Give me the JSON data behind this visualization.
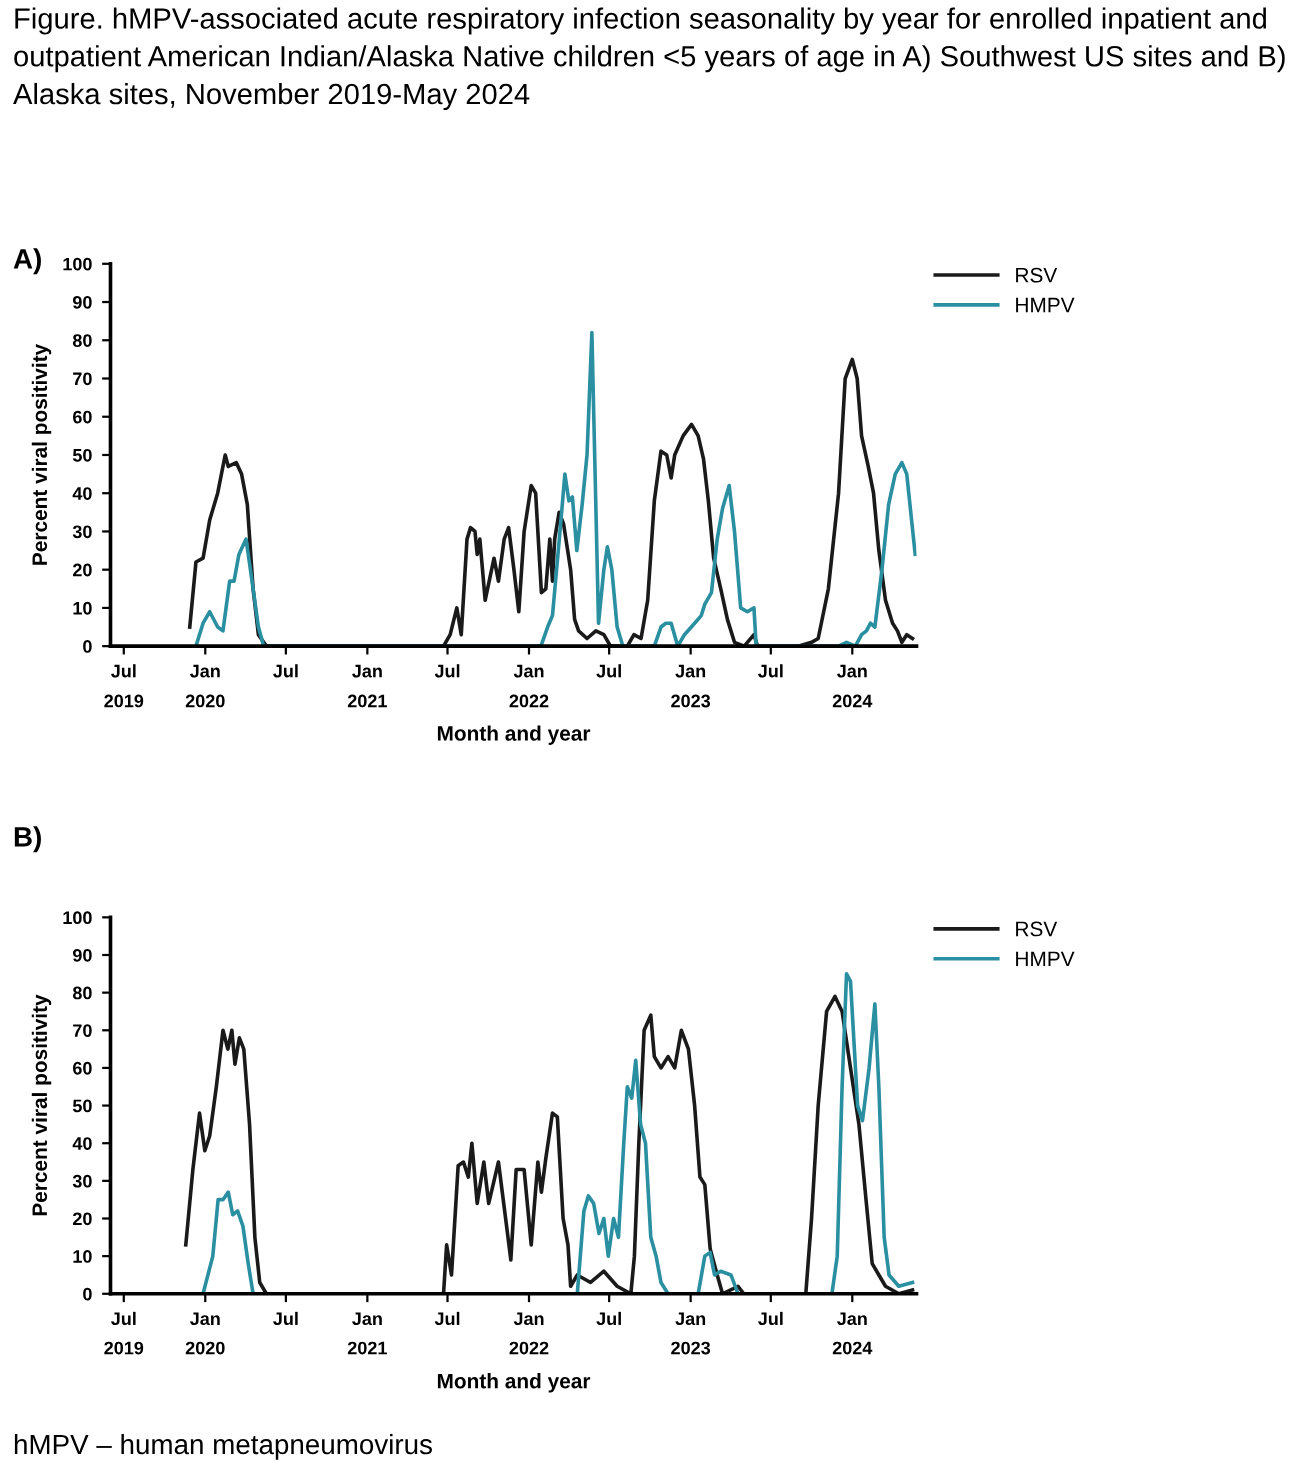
{
  "chart_data": [
    {
      "type": "line",
      "title": "Figure. hMPV-associated acute respiratory infection seasonality by year for enrolled inpatient and outpatient American Indian/Alaska Native children <5 years of age in A) Southwest US sites and B) Alaska sites, November 2019-May 2024",
      "subtitle": "A)",
      "xlabel": "Month and year",
      "ylabel": "Percent viral positivity",
      "xlim": [
        "2019-06-01",
        "2024-05-25"
      ],
      "ylim": [
        0,
        100
      ],
      "yticks": [
        0,
        10,
        20,
        30,
        40,
        50,
        60,
        70,
        80,
        90,
        100
      ],
      "xticks": [
        {
          "value": "2019-07-01",
          "label": "Jul"
        },
        {
          "value": "2020-01-01",
          "label": "Jan"
        },
        {
          "value": "2020-07-01",
          "label": "Jul"
        },
        {
          "value": "2021-01-01",
          "label": "Jan"
        },
        {
          "value": "2021-07-01",
          "label": "Jul"
        },
        {
          "value": "2022-01-01",
          "label": "Jan"
        },
        {
          "value": "2022-07-01",
          "label": "Jul"
        },
        {
          "value": "2023-01-01",
          "label": "Jan"
        },
        {
          "value": "2023-07-01",
          "label": "Jul"
        },
        {
          "value": "2024-01-01",
          "label": "Jan"
        }
      ],
      "x2lim": [
        "2019-06-01",
        "2024-05-25"
      ],
      "x2ticks": [
        {
          "value": "2019-07-01",
          "label": "2019"
        },
        {
          "value": "2020-01-01",
          "label": "2020"
        },
        {
          "value": "2021-01-01",
          "label": "2021"
        },
        {
          "value": "2022-01-01",
          "label": "2022"
        },
        {
          "value": "2023-01-01",
          "label": "2023"
        },
        {
          "value": "2024-01-01",
          "label": "2024"
        }
      ],
      "legend": "top right",
      "grid": false,
      "series": [
        {
          "name": "RSV",
          "color": "#1a1a1a",
          "x": [
            "2019-11-27",
            "2019-12-11",
            "2019-12-27",
            "2020-01-11",
            "2020-01-29",
            "2020-02-15",
            "2020-02-22",
            "2020-03-11",
            "2020-03-23",
            "2020-04-05",
            "2020-04-18",
            "2020-04-30",
            "2020-05-18",
            "2021-06-22",
            "2021-07-07",
            "2021-07-22",
            "2021-08-01",
            "2021-08-14",
            "2021-08-22",
            "2021-09-01",
            "2021-09-06",
            "2021-09-12",
            "2021-09-24",
            "2021-10-14",
            "2021-10-24",
            "2021-11-06",
            "2021-11-16",
            "2021-11-28",
            "2021-12-09",
            "2021-12-21",
            "2022-01-06",
            "2022-01-16",
            "2022-01-29",
            "2022-02-08",
            "2022-02-17",
            "2022-02-23",
            "2022-02-28",
            "2022-03-10",
            "2022-03-20",
            "2022-04-05",
            "2022-04-14",
            "2022-04-23",
            "2022-05-12",
            "2022-06-01",
            "2022-06-19",
            "2022-07-04",
            "2022-08-11",
            "2022-08-26",
            "2022-09-11",
            "2022-09-26",
            "2022-10-11",
            "2022-10-26",
            "2022-11-08",
            "2022-11-18",
            "2022-11-26",
            "2022-12-15",
            "2023-01-03",
            "2023-01-18",
            "2023-01-30",
            "2023-02-10",
            "2023-02-22",
            "2023-03-10",
            "2023-03-25",
            "2023-04-10",
            "2023-05-02",
            "2023-05-24",
            "2023-06-01",
            "2023-07-16",
            "2023-09-01",
            "2023-10-01",
            "2023-10-16",
            "2023-11-08",
            "2023-12-01",
            "2023-12-16",
            "2024-01-01",
            "2024-01-12",
            "2024-01-22",
            "2024-02-06",
            "2024-02-18",
            "2024-03-01",
            "2024-03-16",
            "2024-04-01",
            "2024-04-12",
            "2024-04-22",
            "2024-05-03",
            "2024-05-16"
          ],
          "values": [
            5,
            22,
            23,
            33,
            40,
            50,
            47,
            48,
            45,
            37,
            15,
            3,
            0,
            0,
            3,
            10,
            3,
            28,
            31,
            30,
            24,
            28,
            12,
            23,
            17,
            28,
            31,
            20,
            9,
            30,
            42,
            40,
            14,
            15,
            28,
            17,
            28,
            35,
            32,
            20,
            7,
            4,
            2,
            4,
            3,
            0,
            0,
            3,
            2,
            12,
            38,
            51,
            50,
            44,
            50,
            55,
            58,
            55,
            49,
            38,
            23,
            15,
            7,
            1,
            0,
            3,
            0,
            0,
            0,
            1,
            2,
            15,
            40,
            70,
            75,
            70,
            55,
            47,
            40,
            25,
            12,
            6,
            4,
            1,
            3,
            2
          ]
        },
        {
          "name": "HMPV",
          "color": "#2a8fa0",
          "x": [
            "2019-12-11",
            "2019-12-27",
            "2020-01-11",
            "2020-01-29",
            "2020-02-10",
            "2020-02-25",
            "2020-03-06",
            "2020-03-17",
            "2020-04-02",
            "2020-04-12",
            "2020-04-30",
            "2020-05-12",
            "2022-01-28",
            "2022-02-12",
            "2022-02-23",
            "2022-03-12",
            "2022-03-23",
            "2022-04-01",
            "2022-04-09",
            "2022-04-19",
            "2022-05-01",
            "2022-05-12",
            "2022-05-23",
            "2022-06-07",
            "2022-06-19",
            "2022-06-27",
            "2022-07-07",
            "2022-07-19",
            "2022-08-01",
            "2022-10-11",
            "2022-10-26",
            "2022-11-06",
            "2022-11-18",
            "2022-12-03",
            "2022-12-18",
            "2023-01-10",
            "2023-01-25",
            "2023-02-02",
            "2023-02-17",
            "2023-03-02",
            "2023-03-14",
            "2023-03-29",
            "2023-04-10",
            "2023-04-24",
            "2023-05-09",
            "2023-05-24",
            "2023-05-29",
            "2023-12-01",
            "2023-12-19",
            "2024-01-08",
            "2024-01-22",
            "2024-02-02",
            "2024-02-11",
            "2024-02-21",
            "2024-03-08",
            "2024-03-23",
            "2024-04-07",
            "2024-04-22",
            "2024-05-03",
            "2024-05-22"
          ],
          "values": [
            0,
            6,
            9,
            5,
            4,
            17,
            17,
            24,
            28,
            20,
            5,
            0,
            0,
            5,
            8,
            30,
            45,
            38,
            39,
            25,
            37,
            50,
            82,
            6,
            20,
            26,
            20,
            5,
            0,
            0,
            5,
            6,
            6,
            0,
            3,
            6,
            8,
            11,
            14,
            28,
            36,
            42,
            30,
            10,
            9,
            10,
            0,
            0,
            1,
            0,
            3,
            4,
            6,
            5,
            20,
            37,
            45,
            48,
            45,
            24
          ]
        }
      ]
    },
    {
      "type": "line",
      "subtitle": "B)",
      "xlabel": "Month and year",
      "ylabel": "Percent viral positivity",
      "xlim": [
        "2019-06-01",
        "2024-05-25"
      ],
      "ylim": [
        0,
        100
      ],
      "yticks": [
        0,
        10,
        20,
        30,
        40,
        50,
        60,
        70,
        80,
        90,
        100
      ],
      "xticks": [
        {
          "value": "2019-07-01",
          "label": "Jul"
        },
        {
          "value": "2020-01-01",
          "label": "Jan"
        },
        {
          "value": "2020-07-01",
          "label": "Jul"
        },
        {
          "value": "2021-01-01",
          "label": "Jan"
        },
        {
          "value": "2021-07-01",
          "label": "Jul"
        },
        {
          "value": "2022-01-01",
          "label": "Jan"
        },
        {
          "value": "2022-07-01",
          "label": "Jul"
        },
        {
          "value": "2023-01-01",
          "label": "Jan"
        },
        {
          "value": "2023-07-01",
          "label": "Jul"
        },
        {
          "value": "2024-01-01",
          "label": "Jan"
        }
      ],
      "x2lim": [
        "2019-06-01",
        "2024-05-25"
      ],
      "x2ticks": [
        {
          "value": "2019-07-01",
          "label": "2019"
        },
        {
          "value": "2020-01-01",
          "label": "2020"
        },
        {
          "value": "2021-01-01",
          "label": "2021"
        },
        {
          "value": "2022-01-01",
          "label": "2022"
        },
        {
          "value": "2023-01-01",
          "label": "2023"
        },
        {
          "value": "2024-01-01",
          "label": "2024"
        }
      ],
      "legend": "top right",
      "grid": false,
      "annotations": [
        "hMPV – human metapneumovirus"
      ],
      "series": [
        {
          "name": "RSV",
          "color": "#1a1a1a",
          "x": [
            "2019-11-18",
            "2019-12-04",
            "2019-12-19",
            "2019-12-31",
            "2020-01-11",
            "2020-01-26",
            "2020-02-10",
            "2020-02-21",
            "2020-03-01",
            "2020-03-08",
            "2020-03-18",
            "2020-03-28",
            "2020-04-10",
            "2020-04-22",
            "2020-05-03",
            "2020-05-18",
            "2021-06-22",
            "2021-06-29",
            "2021-07-10",
            "2021-07-25",
            "2021-08-06",
            "2021-08-17",
            "2021-08-25",
            "2021-09-06",
            "2021-09-21",
            "2021-10-02",
            "2021-10-14",
            "2021-10-24",
            "2021-11-06",
            "2021-11-21",
            "2021-12-03",
            "2021-12-21",
            "2022-01-06",
            "2022-01-21",
            "2022-01-29",
            "2022-02-08",
            "2022-02-23",
            "2022-03-06",
            "2022-03-19",
            "2022-03-30",
            "2022-04-05",
            "2022-04-20",
            "2022-05-20",
            "2022-06-19",
            "2022-07-19",
            "2022-08-19",
            "2022-08-27",
            "2022-09-06",
            "2022-09-18",
            "2022-10-03",
            "2022-10-11",
            "2022-10-26",
            "2022-11-11",
            "2022-11-26",
            "2022-12-11",
            "2022-12-27",
            "2023-01-10",
            "2023-01-22",
            "2023-02-02",
            "2023-02-14",
            "2023-03-02",
            "2023-03-14",
            "2023-04-18",
            "2023-05-01",
            "2023-09-18",
            "2023-10-01",
            "2023-10-16",
            "2023-11-04",
            "2023-11-23",
            "2023-12-09",
            "2023-12-28",
            "2024-01-16",
            "2024-02-01",
            "2024-02-15",
            "2024-03-01",
            "2024-03-16",
            "2024-04-15",
            "2024-05-16"
          ],
          "values": [
            13,
            33,
            48,
            38,
            42,
            55,
            70,
            65,
            70,
            61,
            68,
            65,
            45,
            15,
            3,
            0,
            0,
            13,
            5,
            34,
            35,
            31,
            40,
            24,
            35,
            24,
            30,
            35,
            23,
            9,
            33,
            33,
            13,
            35,
            27,
            36,
            48,
            47,
            20,
            13,
            2,
            5,
            3,
            6,
            2,
            0,
            10,
            40,
            70,
            74,
            63,
            60,
            63,
            60,
            70,
            65,
            50,
            31,
            29,
            12,
            5,
            0,
            2,
            0,
            0,
            20,
            50,
            75,
            79,
            75,
            60,
            45,
            25,
            8,
            5,
            2,
            0,
            1
          ]
        },
        {
          "name": "HMPV",
          "color": "#2a8fa0",
          "x": [
            "2019-12-27",
            "2020-01-18",
            "2020-01-30",
            "2020-02-10",
            "2020-02-22",
            "2020-03-03",
            "2020-03-14",
            "2020-03-26",
            "2020-04-07",
            "2020-04-18",
            "2022-04-20",
            "2022-05-05",
            "2022-05-15",
            "2022-05-27",
            "2022-06-08",
            "2022-06-19",
            "2022-06-29",
            "2022-07-11",
            "2022-07-22",
            "2022-08-03",
            "2022-08-11",
            "2022-08-21",
            "2022-08-30",
            "2022-09-10",
            "2022-09-21",
            "2022-10-03",
            "2022-10-15",
            "2022-10-26",
            "2022-11-11",
            "2023-01-18",
            "2023-02-02",
            "2023-02-14",
            "2023-02-24",
            "2023-03-10",
            "2023-04-02",
            "2023-04-18",
            "2023-11-16",
            "2023-11-28",
            "2023-12-09",
            "2023-12-19",
            "2023-12-28",
            "2024-01-13",
            "2024-01-24",
            "2024-02-08",
            "2024-02-21",
            "2024-03-01",
            "2024-03-13",
            "2024-03-24",
            "2024-04-15",
            "2024-05-16"
          ],
          "values": [
            0,
            10,
            25,
            25,
            27,
            21,
            22,
            18,
            8,
            0,
            0,
            22,
            26,
            24,
            16,
            20,
            10,
            20,
            15,
            40,
            55,
            52,
            62,
            45,
            40,
            15,
            10,
            3,
            0,
            0,
            10,
            11,
            5,
            6,
            5,
            0,
            0,
            10,
            55,
            85,
            83,
            50,
            46,
            60,
            77,
            55,
            15,
            5,
            2,
            3
          ]
        }
      ]
    }
  ]
}
